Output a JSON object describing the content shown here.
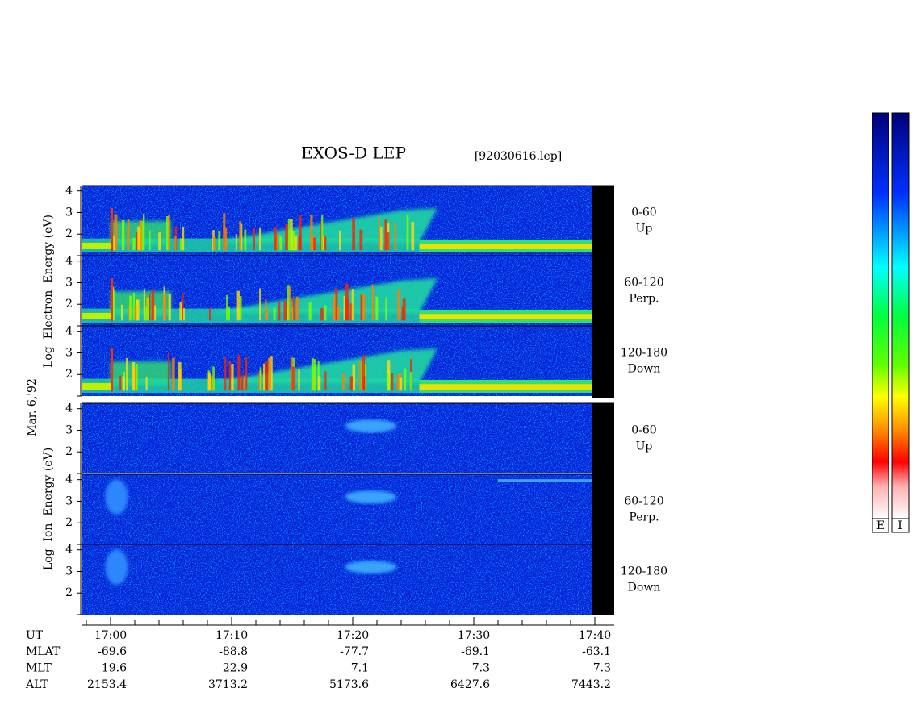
{
  "title": "EXOS-D LEP",
  "file": "[92030616.lep]",
  "date": "Mar. 6,'92",
  "panels": [
    {
      "ylabel": "Log  Electron  Energy (eV)"
    },
    {
      "ylabel": "Log  Ion  Energy (eV)"
    }
  ],
  "pitch": [
    {
      "angle": "0-60",
      "dir": "Up"
    },
    {
      "angle": "60-120",
      "dir": "Perp."
    },
    {
      "angle": "120-180",
      "dir": "Down"
    }
  ],
  "ylim": [
    1,
    4.25
  ],
  "yticks": [
    2,
    3,
    4
  ],
  "ut_label": "UT",
  "times": [
    "17:00",
    "17:10",
    "17:20",
    "17:30",
    "17:40"
  ],
  "orbit": [
    {
      "label": "MLAT",
      "values": [
        -69.6,
        -88.8,
        -77.7,
        -69.1,
        -63.1
      ]
    },
    {
      "label": "MLT",
      "values": [
        19.6,
        22.9,
        7.1,
        7.3,
        7.3
      ]
    },
    {
      "label": "ALT",
      "values": [
        2153.4,
        3713.2,
        5173.6,
        6427.6,
        7443.2
      ]
    }
  ],
  "colorbar": [
    "E",
    "I"
  ]
}
